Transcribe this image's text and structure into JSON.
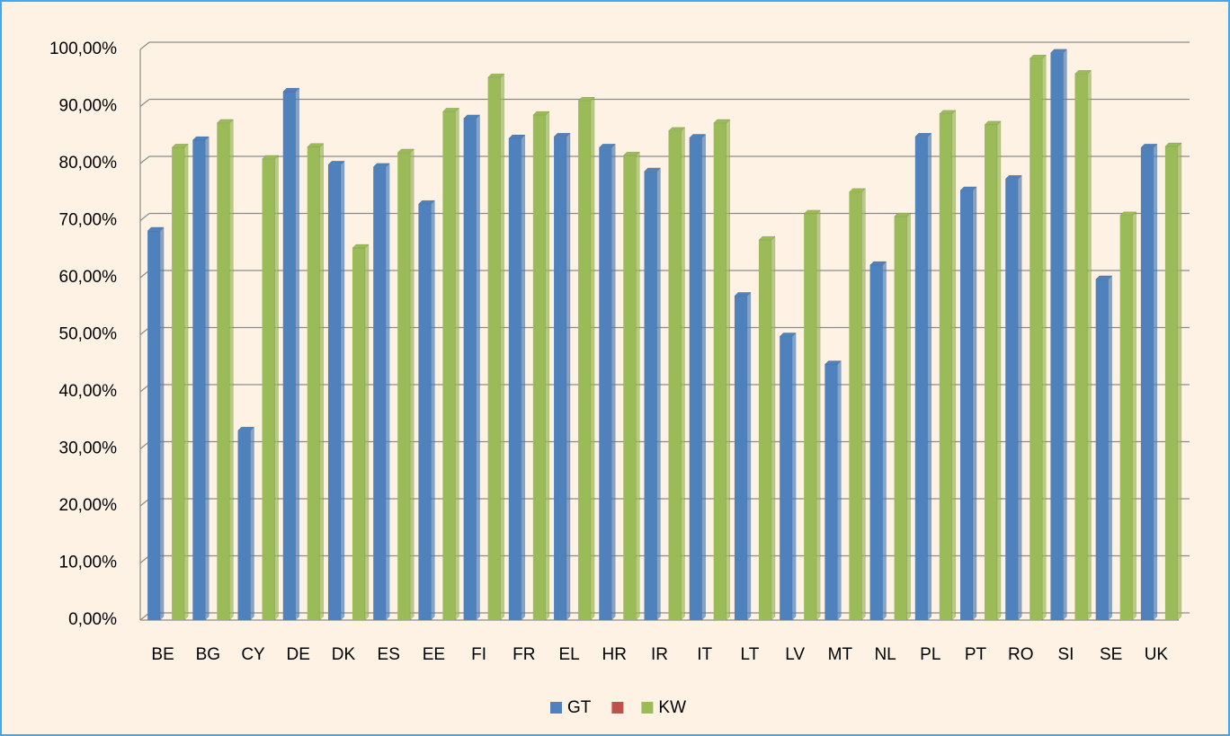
{
  "chart_data": {
    "type": "bar",
    "categories": [
      "BE",
      "BG",
      "CY",
      "DE",
      "DK",
      "ES",
      "EE",
      "FI",
      "FR",
      "EL",
      "HR",
      "IR",
      "IT",
      "LT",
      "LV",
      "MT",
      "NL",
      "PL",
      "PT",
      "RO",
      "SI",
      "SE",
      "UK"
    ],
    "series": [
      {
        "name": "GT",
        "color": "#4f81bd",
        "values": [
          68.2,
          84.1,
          33.2,
          92.6,
          79.8,
          79.4,
          72.9,
          87.9,
          84.4,
          84.7,
          82.8,
          78.6,
          84.5,
          56.8,
          49.7,
          44.8,
          62.2,
          84.7,
          75.3,
          77.3,
          99.4,
          59.7,
          82.8
        ]
      },
      {
        "color": "#c0504d",
        "values": [
          null,
          null,
          null,
          null,
          null,
          null,
          null,
          null,
          null,
          null,
          null,
          null,
          null,
          null,
          null,
          null,
          null,
          null,
          null,
          null,
          null,
          null,
          null
        ]
      },
      {
        "name": "KW",
        "color": "#9bbb59",
        "values": [
          82.8,
          87.1,
          80.8,
          82.9,
          65.2,
          81.9,
          89.1,
          95.1,
          88.5,
          91.0,
          81.4,
          85.7,
          87.1,
          66.6,
          71.2,
          75.0,
          70.7,
          88.7,
          86.8,
          98.4,
          95.7,
          70.9,
          83.0
        ]
      }
    ],
    "ylim": [
      0,
      100
    ],
    "yticks": [
      {
        "value": 0,
        "label": "0,00%"
      },
      {
        "value": 10,
        "label": "10,00%"
      },
      {
        "value": 20,
        "label": "20,00%"
      },
      {
        "value": 30,
        "label": "30,00%"
      },
      {
        "value": 40,
        "label": "40,00%"
      },
      {
        "value": 50,
        "label": "50,00%"
      },
      {
        "value": 60,
        "label": "60,00%"
      },
      {
        "value": 70,
        "label": "70,00%"
      },
      {
        "value": 80,
        "label": "80,00%"
      },
      {
        "value": 90,
        "label": "90,00%"
      },
      {
        "value": 100,
        "label": "100,00%"
      }
    ],
    "grid": true
  }
}
